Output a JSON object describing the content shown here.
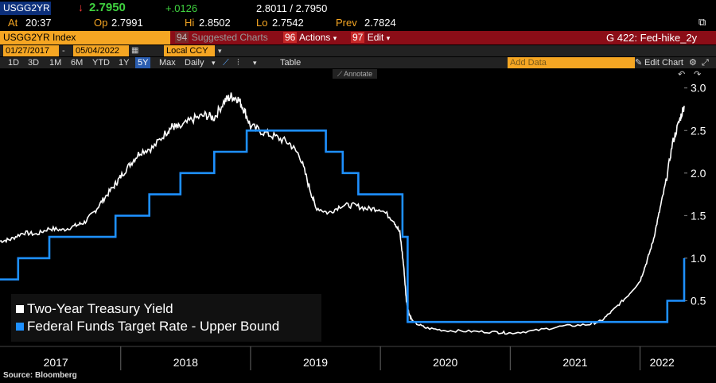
{
  "header": {
    "ticker": "USGG2YR",
    "last": "2.7950",
    "change": "+.0126",
    "bid_ask": "2.8011 / 2.7950",
    "at_label": "At",
    "at_time": "20:37",
    "op_label": "Op",
    "op_value": "2.7991",
    "hi_label": "Hi",
    "hi_value": "2.8502",
    "lo_label": "Lo",
    "lo_value": "2.7542",
    "prev_label": "Prev",
    "prev_value": "2.7824"
  },
  "command_bar": {
    "index_label": "USGG2YR Index",
    "suggested_num": "94",
    "suggested_label": "Suggested Charts",
    "actions_num": "96",
    "actions_label": "Actions",
    "edit_num": "97",
    "edit_label": "Edit",
    "chart_name": "G 422: Fed-hike_2y"
  },
  "date_row": {
    "start_date": "01/27/2017",
    "end_date": "05/04/2022",
    "currency": "Local CCY"
  },
  "range_row": {
    "ranges": [
      "1D",
      "3D",
      "1M",
      "6M",
      "YTD",
      "1Y",
      "5Y",
      "Max"
    ],
    "selected_range": "5Y",
    "frequency": "Daily",
    "table_label": "Table",
    "add_data_placeholder": "Add Data",
    "edit_chart_label": "Edit Chart"
  },
  "annotate_label": "Annotate",
  "source": "Source: Bloomberg",
  "colors": {
    "yield": "#ffffff",
    "fed": "#1e90ff",
    "accent": "#f5a623",
    "bar": "#8b0d17"
  },
  "chart_data": {
    "type": "line",
    "title": "",
    "x_unit": "year (decimal)",
    "xlim": [
      2017.07,
      2022.34
    ],
    "ylim": [
      0,
      3.1
    ],
    "y_ticks": [
      0.5,
      1.0,
      1.5,
      2.0,
      2.5,
      3.0
    ],
    "y_tick_labels": [
      "0.5",
      "1.0",
      "1.5",
      "2.0",
      "2.5",
      "3.0"
    ],
    "x_ticks": [
      {
        "label": "2017",
        "at": 2017.5
      },
      {
        "label": "2018",
        "at": 2018.5
      },
      {
        "label": "2019",
        "at": 2019.5
      },
      {
        "label": "2020",
        "at": 2020.5
      },
      {
        "label": "2021",
        "at": 2021.5
      },
      {
        "label": "2022",
        "at": 2022.17
      }
    ],
    "year_boundaries": [
      2018.0,
      2019.0,
      2020.0,
      2021.0,
      2022.0
    ],
    "legend": [
      "Two-Year Treasury Yield",
      "Federal Funds Target Rate - Upper Bound"
    ],
    "series": [
      {
        "name": "Two-Year Treasury Yield",
        "color": "#ffffff",
        "x": [
          2017.07,
          2017.15,
          2017.25,
          2017.35,
          2017.45,
          2017.55,
          2017.65,
          2017.72,
          2017.8,
          2017.87,
          2017.95,
          2018.0,
          2018.08,
          2018.15,
          2018.25,
          2018.35,
          2018.4,
          2018.45,
          2018.55,
          2018.65,
          2018.72,
          2018.8,
          2018.85,
          2018.9,
          2018.95,
          2019.0,
          2019.1,
          2019.2,
          2019.3,
          2019.38,
          2019.45,
          2019.5,
          2019.6,
          2019.7,
          2019.8,
          2019.9,
          2020.0,
          2020.1,
          2020.15,
          2020.18,
          2020.2,
          2020.22,
          2020.25,
          2020.35,
          2020.5,
          2020.7,
          2020.9,
          2021.0,
          2021.2,
          2021.4,
          2021.6,
          2021.7,
          2021.8,
          2021.9,
          2022.0,
          2022.05,
          2022.1,
          2022.15,
          2022.2,
          2022.25,
          2022.3,
          2022.34
        ],
        "values": [
          1.2,
          1.22,
          1.3,
          1.28,
          1.35,
          1.33,
          1.38,
          1.42,
          1.55,
          1.7,
          1.85,
          1.96,
          2.12,
          2.25,
          2.3,
          2.48,
          2.55,
          2.53,
          2.63,
          2.68,
          2.65,
          2.85,
          2.9,
          2.88,
          2.75,
          2.55,
          2.48,
          2.42,
          2.35,
          2.2,
          1.85,
          1.6,
          1.53,
          1.62,
          1.62,
          1.58,
          1.58,
          1.45,
          1.3,
          0.9,
          0.5,
          0.35,
          0.25,
          0.18,
          0.15,
          0.14,
          0.13,
          0.12,
          0.15,
          0.2,
          0.22,
          0.26,
          0.4,
          0.55,
          0.73,
          0.95,
          1.2,
          1.55,
          1.9,
          2.35,
          2.6,
          2.79
        ]
      },
      {
        "name": "Federal Funds Target Rate - Upper Bound",
        "color": "#1e90ff",
        "x": [
          2017.07,
          2017.21,
          2017.45,
          2017.96,
          2018.22,
          2018.46,
          2018.72,
          2018.97,
          2019.58,
          2019.71,
          2019.83,
          2020.17,
          2020.21,
          2022.21,
          2022.34
        ],
        "values": [
          0.75,
          1.0,
          1.25,
          1.5,
          1.75,
          2.0,
          2.25,
          2.5,
          2.25,
          2.0,
          1.75,
          1.25,
          0.25,
          0.5,
          1.0
        ]
      }
    ]
  }
}
